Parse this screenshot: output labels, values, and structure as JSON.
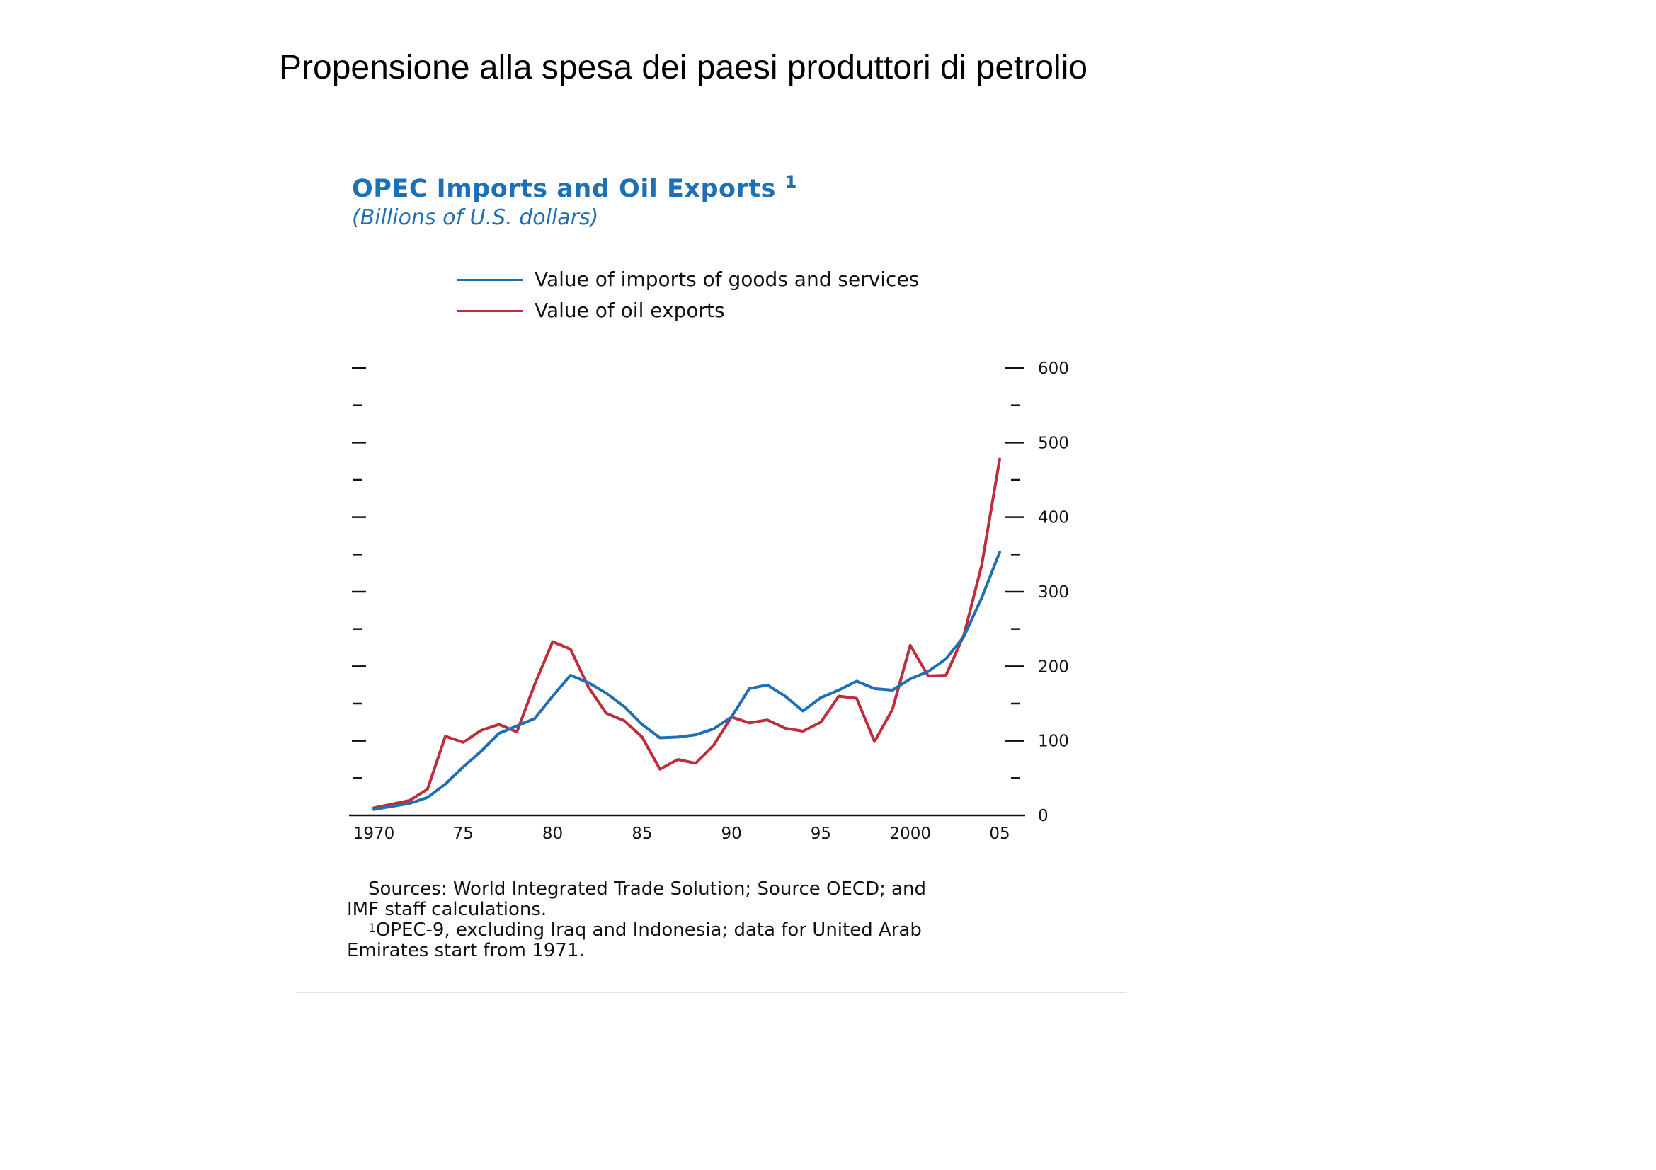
{
  "page_title": "Propensione alla spesa  dei paesi produttori di petrolio",
  "chart": {
    "title": "OPEC Imports and Oil Exports",
    "title_footnote": "1",
    "subtitle": "(Billions of U.S. dollars)",
    "legend": [
      {
        "label": "Value of imports of goods and services",
        "color": "#1f6fb4"
      },
      {
        "label": "Value of oil exports",
        "color": "#bf2d3a"
      }
    ]
  },
  "chart_data": {
    "type": "line",
    "title": "OPEC Imports and Oil Exports",
    "subtitle": "(Billions of U.S. dollars)",
    "xlabel": "",
    "ylabel": "",
    "xlim": [
      1970,
      2005
    ],
    "ylim": [
      0,
      600
    ],
    "x_tick_values": [
      1970,
      1975,
      1980,
      1985,
      1990,
      1995,
      2000,
      2005
    ],
    "x_tick_labels": [
      "1970",
      "75",
      "80",
      "85",
      "90",
      "95",
      "2000",
      "05"
    ],
    "y_tick_values": [
      0,
      100,
      200,
      300,
      400,
      500,
      600
    ],
    "y_tick_labels": [
      "0",
      "100",
      "200",
      "300",
      "400",
      "500",
      "600"
    ],
    "y_minor_ticks": [
      50,
      150,
      250,
      350,
      450,
      550
    ],
    "legend_position": "top",
    "grid": false,
    "x": [
      1970,
      1971,
      1972,
      1973,
      1974,
      1975,
      1976,
      1977,
      1978,
      1979,
      1980,
      1981,
      1982,
      1983,
      1984,
      1985,
      1986,
      1987,
      1988,
      1989,
      1990,
      1991,
      1992,
      1993,
      1994,
      1995,
      1996,
      1997,
      1998,
      1999,
      2000,
      2001,
      2002,
      2003,
      2004,
      2005
    ],
    "series": [
      {
        "name": "Value of imports of goods and services",
        "color": "#1f6fb4",
        "values": [
          8,
          12,
          16,
          24,
          42,
          65,
          86,
          110,
          120,
          130,
          160,
          188,
          178,
          164,
          146,
          122,
          104,
          105,
          108,
          116,
          132,
          170,
          175,
          160,
          140,
          158,
          168,
          180,
          170,
          168,
          183,
          193,
          210,
          240,
          292,
          353
        ]
      },
      {
        "name": "Value of oil exports",
        "color": "#bf2d3a",
        "values": [
          10,
          15,
          20,
          35,
          106,
          98,
          114,
          122,
          112,
          176,
          233,
          223,
          172,
          137,
          127,
          105,
          62,
          75,
          70,
          94,
          132,
          124,
          128,
          117,
          113,
          125,
          160,
          157,
          99,
          142,
          228,
          187,
          188,
          242,
          336,
          478
        ]
      }
    ]
  },
  "notes": {
    "sources_line1": "Sources: World Integrated Trade Solution; Source OECD; and",
    "sources_line2": "IMF staff calculations.",
    "footnote_marker": "1",
    "footnote_line1": "OPEC-9, excluding Iraq and Indonesia; data for United Arab",
    "footnote_line2": "Emirates start from 1971."
  }
}
